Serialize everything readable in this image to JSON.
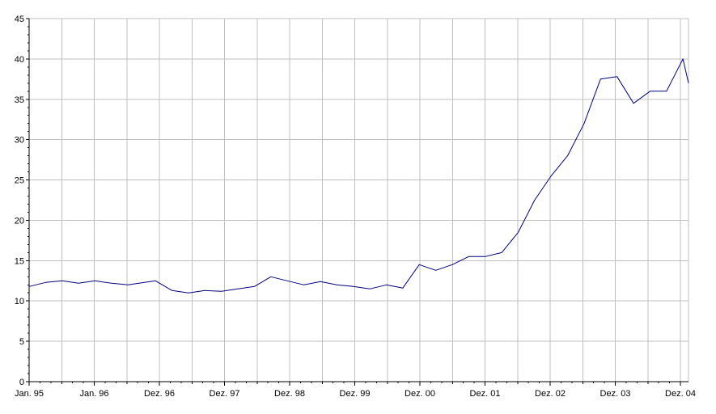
{
  "chart_data": {
    "type": "line",
    "title": "",
    "xlabel": "",
    "ylabel": "",
    "ylim": [
      0,
      45
    ],
    "y_ticks": [
      0,
      5,
      10,
      15,
      20,
      25,
      30,
      35,
      40,
      45
    ],
    "x_tick_labels": [
      "Jan. 95",
      "Jan. 96",
      "Dez. 96",
      "Dez. 97",
      "Dez. 98",
      "Dez. 99",
      "Dez. 00",
      "Dez. 01",
      "Dez. 02",
      "Dez. 03",
      "Dez. 04"
    ],
    "grid": true,
    "legend": "none",
    "line_color": "#000080",
    "series": [
      {
        "x": [
          "1995-01",
          "1995-04",
          "1995-07",
          "1995-10",
          "1996-01",
          "1996-04",
          "1996-07",
          "1996-10",
          "1996-12",
          "1997-03",
          "1997-06",
          "1997-09",
          "1997-12",
          "1998-03",
          "1998-06",
          "1998-09",
          "1998-12",
          "1999-03",
          "1999-06",
          "1999-09",
          "1999-12",
          "2000-03",
          "2000-06",
          "2000-09",
          "2000-12",
          "2001-03",
          "2001-06",
          "2001-09",
          "2001-12",
          "2002-03",
          "2002-06",
          "2002-09",
          "2002-12",
          "2003-03",
          "2003-06",
          "2003-09",
          "2003-12",
          "2004-03",
          "2004-06",
          "2004-09",
          "2004-12",
          "2005-01"
        ],
        "values": [
          11.8,
          12.3,
          12.5,
          12.2,
          12.5,
          12.2,
          12.0,
          12.3,
          12.5,
          11.3,
          11.0,
          11.3,
          11.2,
          11.5,
          11.8,
          13.0,
          12.5,
          12.0,
          12.4,
          12.0,
          11.8,
          11.5,
          12.0,
          11.6,
          14.5,
          13.8,
          14.5,
          15.5,
          15.5,
          16.0,
          18.5,
          22.5,
          25.5,
          28.0,
          32.0,
          37.5,
          37.8,
          34.5,
          36.0,
          36.0,
          40.0,
          37.0
        ]
      }
    ]
  }
}
